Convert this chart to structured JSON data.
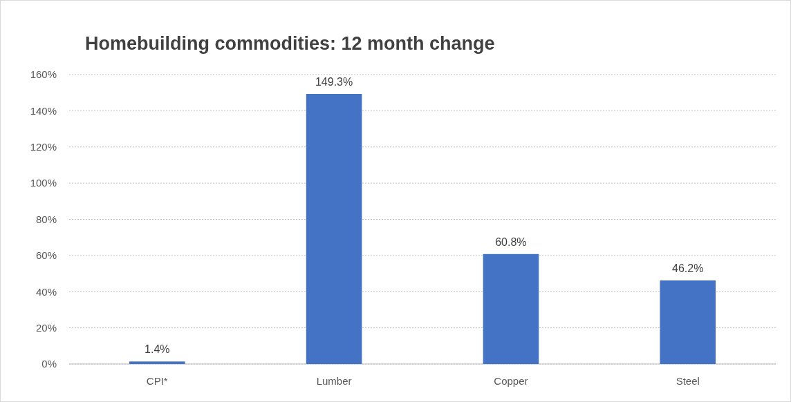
{
  "chart_data": {
    "type": "bar",
    "title": "Homebuilding commodities: 12 month change",
    "categories": [
      "CPI*",
      "Lumber",
      "Copper",
      "Steel"
    ],
    "values": [
      1.4,
      149.3,
      60.8,
      46.2
    ],
    "value_labels": [
      "1.4%",
      "149.3%",
      "60.8%",
      "46.2%"
    ],
    "color": "#4472c4",
    "ylim": [
      0,
      160
    ],
    "yticks": [
      {
        "value": 0,
        "label": "0%"
      },
      {
        "value": 20,
        "label": "20%"
      },
      {
        "value": 40,
        "label": "40%"
      },
      {
        "value": 60,
        "label": "60%"
      },
      {
        "value": 80,
        "label": "80%"
      },
      {
        "value": 100,
        "label": "100%"
      },
      {
        "value": 120,
        "label": "120%"
      },
      {
        "value": 140,
        "label": "140%"
      },
      {
        "value": 160,
        "label": "160%"
      }
    ],
    "grid": "y"
  }
}
